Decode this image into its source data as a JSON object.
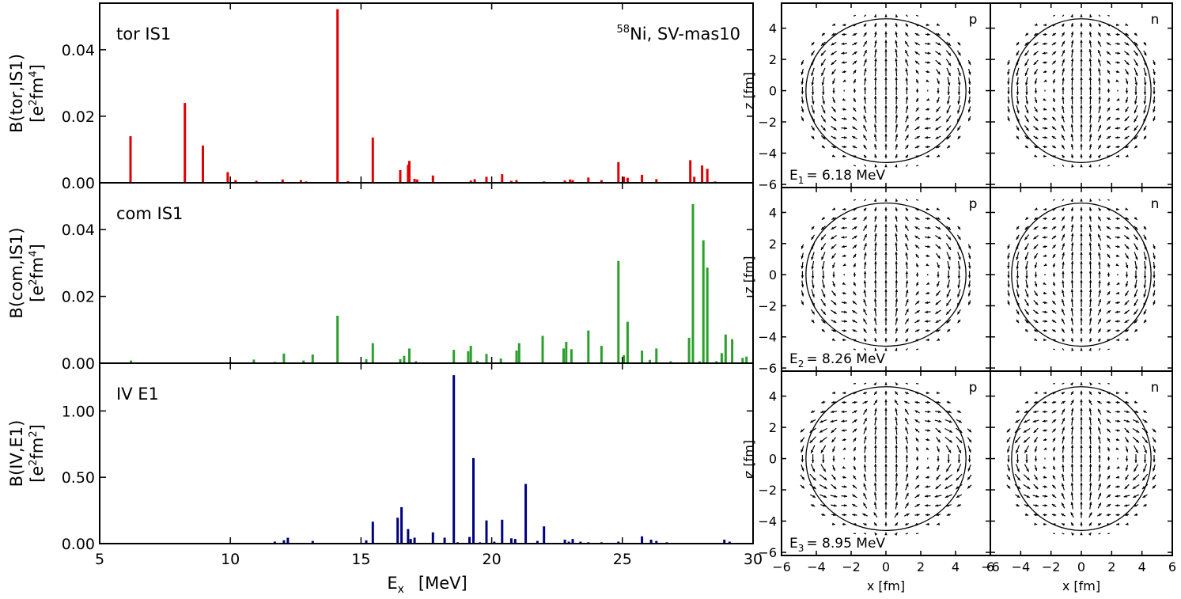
{
  "chart_data": [
    {
      "type": "bar",
      "panel": "tor",
      "annotation": "tor IS1",
      "top_right_label": {
        "sup": "58",
        "text": "Ni, SV-mas10"
      },
      "ylabel": "B(tor,IS1)",
      "yunit": {
        "pre": "[e",
        "sup1": "2",
        "mid": "fm",
        "sup2": "4",
        "post": "]"
      },
      "xlim": [
        5,
        30
      ],
      "ylim": [
        0,
        0.054
      ],
      "yticks": [
        0,
        0.02,
        0.04
      ],
      "yticklabels": [
        "0.00",
        "0.02",
        "0.04"
      ],
      "color": "#e00000",
      "x": [
        6.18,
        8.26,
        8.95,
        9.9,
        10.2,
        11.0,
        12.0,
        12.7,
        12.9,
        14.1,
        14.5,
        15.45,
        16.5,
        16.8,
        16.85,
        17.05,
        17.15,
        17.75,
        19.2,
        19.35,
        19.8,
        20.4,
        20.75,
        20.95,
        22.0,
        22.8,
        23.0,
        23.1,
        23.7,
        24.2,
        24.85,
        25.05,
        25.2,
        25.75,
        26.3,
        27.6,
        27.75,
        28.05,
        28.25,
        28.55
      ],
      "values": [
        0.014,
        0.024,
        0.0112,
        0.0032,
        0.0008,
        0.0006,
        0.001,
        0.0008,
        0.0004,
        0.0522,
        0.0005,
        0.0136,
        0.0038,
        0.0054,
        0.0066,
        0.0012,
        0.001,
        0.0022,
        0.0007,
        0.0011,
        0.0018,
        0.0026,
        0.0006,
        0.0008,
        0.0004,
        0.0007,
        0.001,
        0.0008,
        0.0016,
        0.0008,
        0.0062,
        0.0018,
        0.0015,
        0.0024,
        0.0011,
        0.0068,
        0.0018,
        0.0052,
        0.0042,
        0.0004
      ]
    },
    {
      "type": "bar",
      "panel": "com",
      "annotation": "com IS1",
      "ylabel": "B(com,IS1)",
      "yunit": {
        "pre": "[e",
        "sup1": "2",
        "mid": "fm",
        "sup2": "4",
        "post": "]"
      },
      "xlim": [
        5,
        30
      ],
      "ylim": [
        0,
        0.054
      ],
      "yticks": [
        0,
        0.02,
        0.04
      ],
      "yticklabels": [
        "0.00",
        "0.02",
        "0.04"
      ],
      "color": "#2ca02c",
      "x": [
        6.2,
        10.0,
        10.9,
        11.7,
        12.05,
        12.8,
        13.15,
        14.1,
        15.2,
        15.45,
        16.5,
        16.65,
        16.85,
        17.1,
        18.55,
        19.1,
        19.2,
        19.45,
        19.8,
        20.35,
        20.95,
        21.05,
        21.95,
        22.75,
        22.85,
        23.05,
        23.7,
        24.2,
        24.85,
        25.05,
        25.2,
        25.75,
        26.05,
        26.3,
        26.85,
        27.55,
        27.7,
        27.95,
        28.1,
        28.25,
        28.6,
        28.8,
        28.95,
        29.2,
        29.6,
        29.75
      ],
      "values": [
        0.0008,
        0.0004,
        0.0011,
        0.0004,
        0.0029,
        0.0008,
        0.0026,
        0.0142,
        0.0012,
        0.006,
        0.0012,
        0.0022,
        0.0044,
        0.0006,
        0.004,
        0.0036,
        0.0052,
        0.0007,
        0.0028,
        0.0014,
        0.0038,
        0.006,
        0.0082,
        0.0044,
        0.0064,
        0.0042,
        0.0098,
        0.0052,
        0.0306,
        0.0024,
        0.0124,
        0.0038,
        0.001,
        0.0044,
        0.0006,
        0.0076,
        0.0476,
        0.0006,
        0.0368,
        0.0286,
        0.0006,
        0.003,
        0.0086,
        0.0072,
        0.0016,
        0.002
      ]
    },
    {
      "type": "bar",
      "panel": "IV",
      "annotation": "IV E1",
      "ylabel": "B(IV,E1)",
      "yunit": {
        "pre": "[e",
        "sup1": "2",
        "mid": "fm",
        "sup2": "2",
        "post": "]"
      },
      "xlabel": {
        "main": "E",
        "sub": "x",
        "unit": "[MeV]"
      },
      "xlim": [
        5,
        30
      ],
      "xticks": [
        5,
        10,
        15,
        20,
        25,
        30
      ],
      "xticklabels": [
        "5",
        "10",
        "15",
        "20",
        "25",
        "30"
      ],
      "ylim": [
        0,
        1.36
      ],
      "yticks": [
        0,
        0.5,
        1.0
      ],
      "yticklabels": [
        "0.00",
        "0.50",
        "1.00"
      ],
      "color": "#000080",
      "x": [
        11.7,
        12.05,
        12.2,
        13.15,
        14.5,
        15.2,
        15.45,
        16.4,
        16.55,
        16.8,
        16.9,
        17.05,
        17.75,
        18.2,
        18.55,
        18.7,
        19.15,
        19.3,
        19.55,
        19.8,
        20.1,
        20.4,
        20.75,
        20.9,
        21.3,
        21.75,
        22.0,
        22.8,
        22.95,
        23.1,
        23.4,
        23.7,
        24.2,
        24.85,
        25.75,
        26.1,
        26.3,
        26.7,
        28.9,
        29.1
      ],
      "values": [
        0.015,
        0.025,
        0.045,
        0.02,
        0.006,
        0.025,
        0.165,
        0.195,
        0.275,
        0.11,
        0.035,
        0.045,
        0.085,
        0.045,
        1.27,
        0.01,
        0.05,
        0.645,
        0.01,
        0.175,
        0.015,
        0.18,
        0.04,
        0.035,
        0.45,
        0.02,
        0.13,
        0.03,
        0.015,
        0.035,
        0.015,
        0.01,
        0.01,
        0.015,
        0.055,
        0.03,
        0.02,
        0.01,
        0.03,
        0.015
      ]
    },
    {
      "type": "scatter",
      "kind": "vector_field_grid",
      "xlabel": "x [fm]",
      "ylabel": "z [fm]",
      "xlim": [
        -6,
        6
      ],
      "ylim": [
        -6.2,
        5.6
      ],
      "xticklabels": [
        "−6",
        "−4",
        "−2",
        "0",
        "2",
        "4",
        "6"
      ],
      "yticklabels": [
        "−6",
        "−4",
        "−2",
        "0",
        "2",
        "4"
      ],
      "circle_radius": 4.6,
      "species": [
        "p",
        "n"
      ],
      "states": [
        {
          "label": "E",
          "sub": "1",
          "value": "= 6.18 MeV"
        },
        {
          "label": "E",
          "sub": "2",
          "value": "= 8.26 MeV"
        },
        {
          "label": "E",
          "sub": "3",
          "value": "= 8.95 MeV"
        }
      ]
    }
  ]
}
